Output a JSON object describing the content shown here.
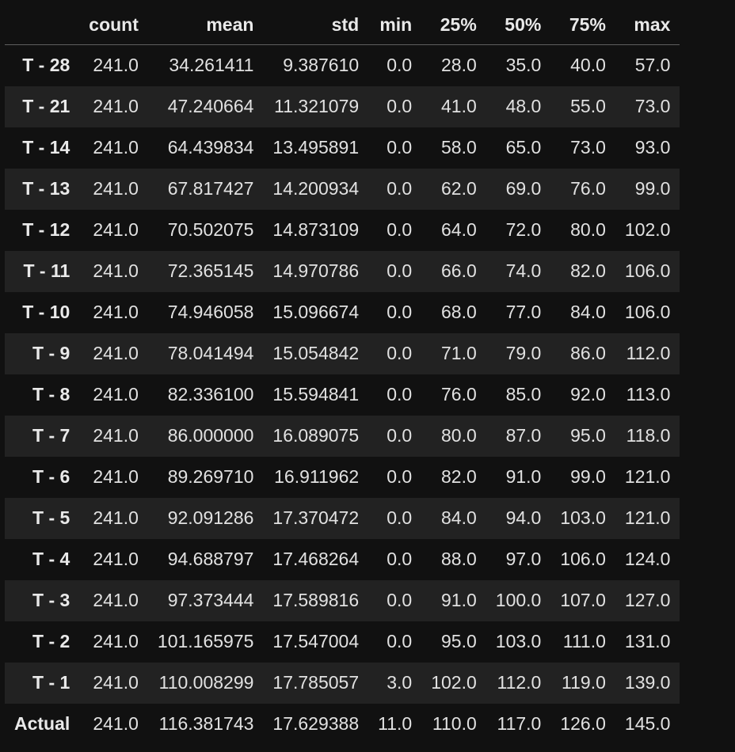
{
  "table": {
    "index_header": "",
    "columns": [
      "count",
      "mean",
      "std",
      "min",
      "25%",
      "50%",
      "75%",
      "max"
    ],
    "rows": [
      {
        "label": "T - 28",
        "values": [
          "241.0",
          "34.261411",
          "9.387610",
          "0.0",
          "28.0",
          "35.0",
          "40.0",
          "57.0"
        ]
      },
      {
        "label": "T - 21",
        "values": [
          "241.0",
          "47.240664",
          "11.321079",
          "0.0",
          "41.0",
          "48.0",
          "55.0",
          "73.0"
        ]
      },
      {
        "label": "T - 14",
        "values": [
          "241.0",
          "64.439834",
          "13.495891",
          "0.0",
          "58.0",
          "65.0",
          "73.0",
          "93.0"
        ]
      },
      {
        "label": "T - 13",
        "values": [
          "241.0",
          "67.817427",
          "14.200934",
          "0.0",
          "62.0",
          "69.0",
          "76.0",
          "99.0"
        ]
      },
      {
        "label": "T - 12",
        "values": [
          "241.0",
          "70.502075",
          "14.873109",
          "0.0",
          "64.0",
          "72.0",
          "80.0",
          "102.0"
        ]
      },
      {
        "label": "T - 11",
        "values": [
          "241.0",
          "72.365145",
          "14.970786",
          "0.0",
          "66.0",
          "74.0",
          "82.0",
          "106.0"
        ]
      },
      {
        "label": "T - 10",
        "values": [
          "241.0",
          "74.946058",
          "15.096674",
          "0.0",
          "68.0",
          "77.0",
          "84.0",
          "106.0"
        ]
      },
      {
        "label": "T - 9",
        "values": [
          "241.0",
          "78.041494",
          "15.054842",
          "0.0",
          "71.0",
          "79.0",
          "86.0",
          "112.0"
        ]
      },
      {
        "label": "T - 8",
        "values": [
          "241.0",
          "82.336100",
          "15.594841",
          "0.0",
          "76.0",
          "85.0",
          "92.0",
          "113.0"
        ]
      },
      {
        "label": "T - 7",
        "values": [
          "241.0",
          "86.000000",
          "16.089075",
          "0.0",
          "80.0",
          "87.0",
          "95.0",
          "118.0"
        ]
      },
      {
        "label": "T - 6",
        "values": [
          "241.0",
          "89.269710",
          "16.911962",
          "0.0",
          "82.0",
          "91.0",
          "99.0",
          "121.0"
        ]
      },
      {
        "label": "T - 5",
        "values": [
          "241.0",
          "92.091286",
          "17.370472",
          "0.0",
          "84.0",
          "94.0",
          "103.0",
          "121.0"
        ]
      },
      {
        "label": "T - 4",
        "values": [
          "241.0",
          "94.688797",
          "17.468264",
          "0.0",
          "88.0",
          "97.0",
          "106.0",
          "124.0"
        ]
      },
      {
        "label": "T - 3",
        "values": [
          "241.0",
          "97.373444",
          "17.589816",
          "0.0",
          "91.0",
          "100.0",
          "107.0",
          "127.0"
        ]
      },
      {
        "label": "T - 2",
        "values": [
          "241.0",
          "101.165975",
          "17.547004",
          "0.0",
          "95.0",
          "103.0",
          "111.0",
          "131.0"
        ]
      },
      {
        "label": "T - 1",
        "values": [
          "241.0",
          "110.008299",
          "17.785057",
          "3.0",
          "102.0",
          "112.0",
          "119.0",
          "139.0"
        ]
      },
      {
        "label": "Actual",
        "values": [
          "241.0",
          "116.381743",
          "17.629388",
          "11.0",
          "110.0",
          "117.0",
          "126.0",
          "145.0"
        ]
      }
    ]
  }
}
